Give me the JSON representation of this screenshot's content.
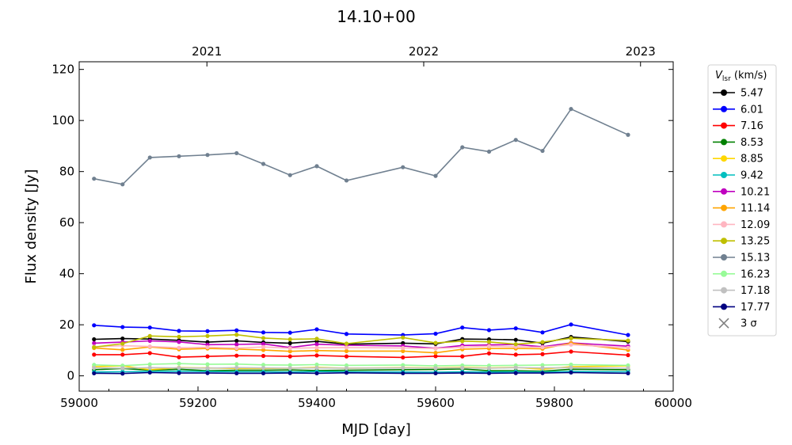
{
  "chart_data": {
    "type": "line",
    "title": "14.10+00",
    "xlabel": "MJD [day]",
    "ylabel": "Flux density [Jy]",
    "xlim": [
      59000,
      60000
    ],
    "ylim": [
      -6,
      123
    ],
    "xticks": [
      59000,
      59200,
      59400,
      59600,
      59800,
      60000
    ],
    "yticks": [
      0,
      20,
      40,
      60,
      80,
      100,
      120
    ],
    "top_axis": {
      "ticks": [
        {
          "label": "2021",
          "x": 59215
        },
        {
          "label": "2022",
          "x": 59580
        },
        {
          "label": "2023",
          "x": 59945
        }
      ]
    },
    "legend": {
      "title_main": "V",
      "title_sub": "lsr",
      "title_unit": " (km/s)",
      "placement": "right-outside",
      "three_sigma_label": "3 σ",
      "three_sigma_color": "#808080"
    },
    "x": [
      59025,
      59073,
      59119,
      59168,
      59216,
      59265,
      59310,
      59355,
      59400,
      59450,
      59545,
      59600,
      59645,
      59690,
      59735,
      59780,
      59828,
      59924
    ],
    "series": [
      {
        "name": "5.47",
        "color": "#000000",
        "values": [
          14.3,
          14.6,
          14.4,
          13.9,
          13.2,
          13.7,
          13.1,
          12.8,
          13.5,
          12.4,
          12.8,
          12.5,
          14.4,
          14.3,
          14.1,
          12.8,
          15.2,
          13.4
        ]
      },
      {
        "name": "6.01",
        "color": "#0000ff",
        "values": [
          19.8,
          19.1,
          18.9,
          17.6,
          17.5,
          17.8,
          17.0,
          16.9,
          18.2,
          16.4,
          16.0,
          16.5,
          18.9,
          17.9,
          18.6,
          17.0,
          20.1,
          16.0
        ]
      },
      {
        "name": "7.16",
        "color": "#ff0000",
        "values": [
          8.3,
          8.3,
          8.9,
          7.3,
          7.6,
          7.9,
          7.8,
          7.6,
          8.0,
          7.6,
          7.2,
          7.7,
          7.6,
          8.8,
          8.3,
          8.5,
          9.5,
          8.1
        ]
      },
      {
        "name": "8.53",
        "color": "#008000",
        "values": [
          2.4,
          2.9,
          2.2,
          2.6,
          2.0,
          2.2,
          2.2,
          2.3,
          2.1,
          2.2,
          2.4,
          2.5,
          2.7,
          2.0,
          2.0,
          1.8,
          2.6,
          2.4
        ]
      },
      {
        "name": "8.85",
        "color": "#ffd700",
        "values": [
          3.6,
          3.9,
          2.4,
          3.2,
          3.1,
          2.9,
          2.9,
          3.0,
          3.3,
          3.0,
          3.2,
          3.1,
          3.3,
          3.1,
          3.3,
          2.6,
          3.6,
          3.9
        ]
      },
      {
        "name": "9.42",
        "color": "#00bfbf",
        "values": [
          1.5,
          1.6,
          1.7,
          1.8,
          1.7,
          1.6,
          1.6,
          1.5,
          1.7,
          1.6,
          1.5,
          1.4,
          1.6,
          1.5,
          1.6,
          1.5,
          1.7,
          1.6
        ]
      },
      {
        "name": "10.21",
        "color": "#bf00bf",
        "values": [
          12.8,
          13.2,
          13.7,
          13.3,
          12.2,
          12.3,
          12.5,
          11.1,
          12.4,
          12.0,
          11.7,
          10.8,
          11.9,
          12.1,
          12.3,
          11.4,
          12.9,
          11.6
        ]
      },
      {
        "name": "11.14",
        "color": "#ffa500",
        "values": [
          10.9,
          10.2,
          11.3,
          10.4,
          10.7,
          10.5,
          10.1,
          9.6,
          9.9,
          9.7,
          9.7,
          9.0,
          10.4,
          10.7,
          10.7,
          10.6,
          12.8,
          10.1
        ]
      },
      {
        "name": "12.09",
        "color": "#ffb6c1",
        "values": [
          11.4,
          11.8,
          11.5,
          11.0,
          11.2,
          10.9,
          11.3,
          10.8,
          11.0,
          11.1,
          10.9,
          10.7,
          11.2,
          11.6,
          11.4,
          11.2,
          12.2,
          11.0
        ]
      },
      {
        "name": "13.25",
        "color": "#bfbf00",
        "values": [
          11.2,
          12.6,
          15.6,
          15.3,
          15.6,
          16.1,
          14.8,
          14.3,
          14.5,
          12.6,
          15.0,
          12.9,
          13.6,
          13.3,
          12.4,
          13.2,
          14.7,
          13.8
        ]
      },
      {
        "name": "15.13",
        "color": "#708090",
        "values": [
          77.2,
          75.0,
          85.5,
          86.0,
          86.5,
          87.2,
          83.0,
          78.6,
          82.1,
          76.5,
          81.7,
          78.3,
          89.5,
          87.8,
          92.4,
          88.1,
          104.5,
          94.4
        ]
      },
      {
        "name": "16.23",
        "color": "#98fb98",
        "values": [
          4.3,
          4.0,
          4.5,
          4.8,
          4.5,
          4.6,
          4.3,
          4.2,
          4.4,
          4.1,
          4.2,
          3.9,
          4.1,
          4.0,
          4.1,
          4.2,
          4.4,
          4.1
        ]
      },
      {
        "name": "17.18",
        "color": "#c0c0c0",
        "values": [
          3.1,
          3.0,
          3.2,
          3.1,
          3.0,
          3.2,
          3.1,
          3.0,
          3.1,
          3.0,
          3.1,
          3.0,
          3.1,
          3.0,
          3.2,
          3.1,
          3.2,
          3.0
        ]
      },
      {
        "name": "17.77",
        "color": "#000080",
        "values": [
          1.0,
          0.9,
          1.3,
          1.1,
          1.1,
          1.0,
          1.0,
          1.1,
          1.0,
          1.2,
          1.0,
          1.0,
          1.1,
          1.0,
          1.1,
          1.1,
          1.3,
          1.0
        ]
      }
    ]
  }
}
